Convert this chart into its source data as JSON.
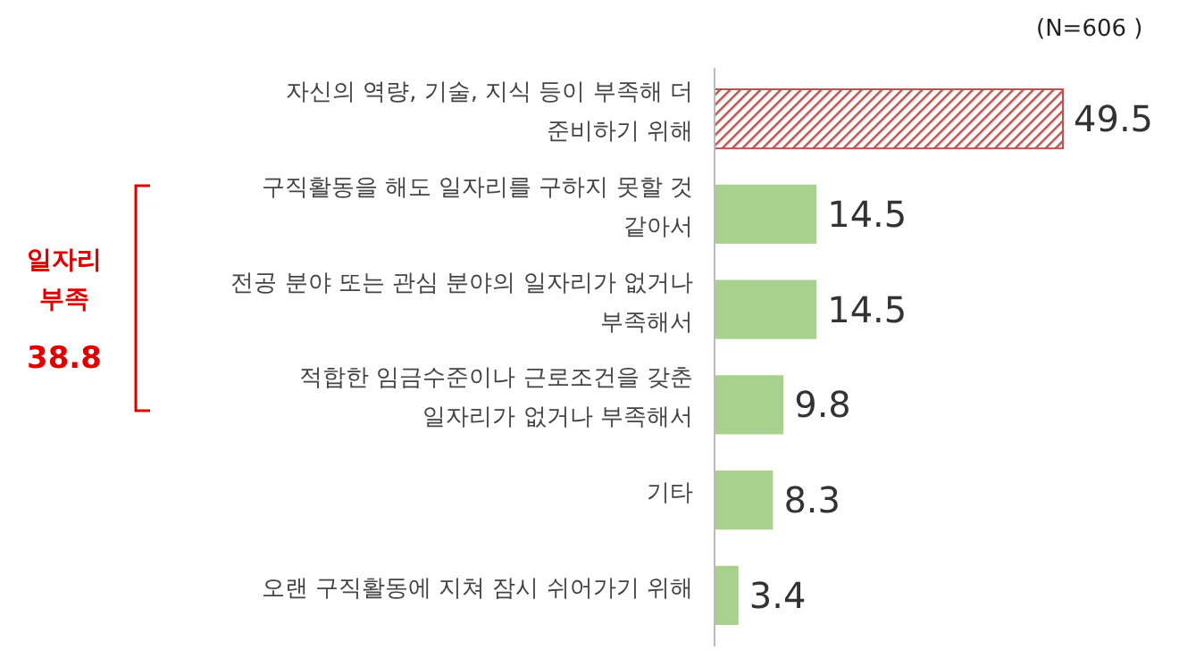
{
  "chart_data": {
    "type": "bar",
    "orientation": "horizontal",
    "categories": [
      "자신의 역량, 기술, 지식 등이 부족해 더 준비하기 위해",
      "구직활동을 해도 일자리를 구하지 못할 것 같아서",
      "전공 분야 또는 관심 분야의 일자리가 없거나 부족해서",
      "적합한 임금수준이나 근로조건을 갖춘 일자리가 없거나 부족해서",
      "기타",
      "오랜 구직활동에 지쳐 잠시 쉬어가기 위해"
    ],
    "values": [
      49.5,
      14.5,
      14.5,
      9.8,
      8.3,
      3.4
    ],
    "colors": [
      "#c0504d",
      "#a9d18e",
      "#a9d18e",
      "#a9d18e",
      "#a9d18e",
      "#a9d18e"
    ],
    "data_labels": true,
    "annotations": [
      "(N=606 )",
      "일자리 부족",
      "38.8"
    ]
  }
}
